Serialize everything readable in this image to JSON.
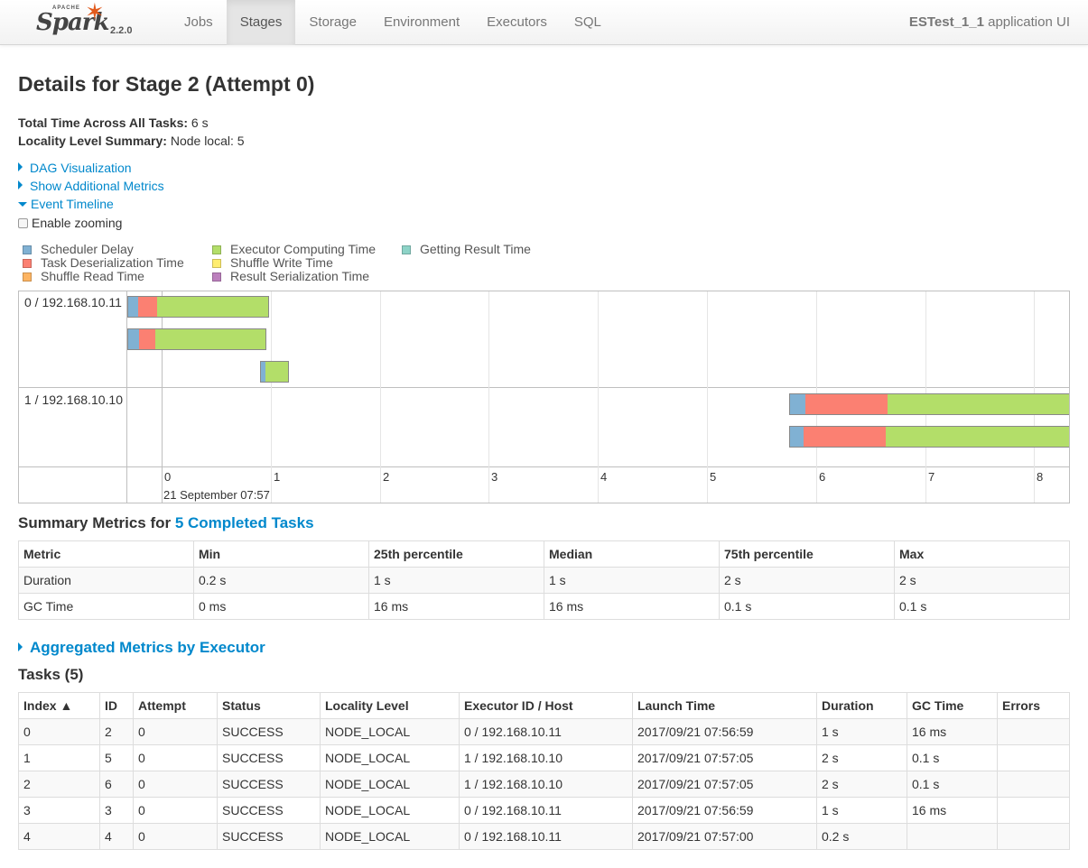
{
  "navbar": {
    "brand_apache": "APACHE",
    "brand_name": "Spark",
    "version": "2.2.0",
    "tabs": [
      {
        "label": "Jobs",
        "active": false
      },
      {
        "label": "Stages",
        "active": true
      },
      {
        "label": "Storage",
        "active": false
      },
      {
        "label": "Environment",
        "active": false
      },
      {
        "label": "Executors",
        "active": false
      },
      {
        "label": "SQL",
        "active": false
      }
    ],
    "app_name": "ESTest_1_1",
    "app_suffix": " application UI"
  },
  "page": {
    "title": "Details for Stage 2 (Attempt 0)",
    "total_time_label": "Total Time Across All Tasks:",
    "total_time_value": " 6 s",
    "locality_label": "Locality Level Summary:",
    "locality_value": " Node local: 5"
  },
  "expanders": {
    "dag": "DAG Visualization",
    "additional_metrics": "Show Additional Metrics",
    "event_timeline": "Event Timeline",
    "enable_zooming": "Enable zooming"
  },
  "legend": [
    {
      "label": "Scheduler Delay",
      "color": "#80b1d3"
    },
    {
      "label": "Task Deserialization Time",
      "color": "#fb8072"
    },
    {
      "label": "Shuffle Read Time",
      "color": "#fdb462"
    },
    {
      "label": "Executor Computing Time",
      "color": "#b3de69"
    },
    {
      "label": "Shuffle Write Time",
      "color": "#ffed6f"
    },
    {
      "label": "Result Serialization Time",
      "color": "#bc80bd"
    },
    {
      "label": "Getting Result Time",
      "color": "#8dd3c7"
    }
  ],
  "timeline": {
    "groups": [
      "0 / 192.168.10.11",
      "1 / 192.168.10.10"
    ],
    "axis_ticks": [
      "0",
      "1",
      "2",
      "3",
      "4",
      "5",
      "6",
      "7",
      "8"
    ],
    "axis_date": "21 September 07:57"
  },
  "summary": {
    "title_prefix": "Summary Metrics for ",
    "title_link": "5 Completed Tasks",
    "headers": [
      "Metric",
      "Min",
      "25th percentile",
      "Median",
      "75th percentile",
      "Max"
    ],
    "rows": [
      [
        "Duration",
        "0.2 s",
        "1 s",
        "1 s",
        "2 s",
        "2 s"
      ],
      [
        "GC Time",
        "0 ms",
        "16 ms",
        "16 ms",
        "0.1 s",
        "0.1 s"
      ]
    ]
  },
  "aggregated": {
    "label": "Aggregated Metrics by Executor"
  },
  "tasks": {
    "title": "Tasks (5)",
    "headers": [
      "Index ▲",
      "ID",
      "Attempt",
      "Status",
      "Locality Level",
      "Executor ID / Host",
      "Launch Time",
      "Duration",
      "GC Time",
      "Errors"
    ],
    "rows": [
      [
        "0",
        "2",
        "0",
        "SUCCESS",
        "NODE_LOCAL",
        "0 / 192.168.10.11",
        "2017/09/21 07:56:59",
        "1 s",
        "16 ms",
        ""
      ],
      [
        "1",
        "5",
        "0",
        "SUCCESS",
        "NODE_LOCAL",
        "1 / 192.168.10.10",
        "2017/09/21 07:57:05",
        "2 s",
        "0.1 s",
        ""
      ],
      [
        "2",
        "6",
        "0",
        "SUCCESS",
        "NODE_LOCAL",
        "1 / 192.168.10.10",
        "2017/09/21 07:57:05",
        "2 s",
        "0.1 s",
        ""
      ],
      [
        "3",
        "3",
        "0",
        "SUCCESS",
        "NODE_LOCAL",
        "0 / 192.168.10.11",
        "2017/09/21 07:56:59",
        "1 s",
        "16 ms",
        ""
      ],
      [
        "4",
        "4",
        "0",
        "SUCCESS",
        "NODE_LOCAL",
        "0 / 192.168.10.11",
        "2017/09/21 07:57:00",
        "0.2 s",
        "",
        ""
      ]
    ]
  }
}
